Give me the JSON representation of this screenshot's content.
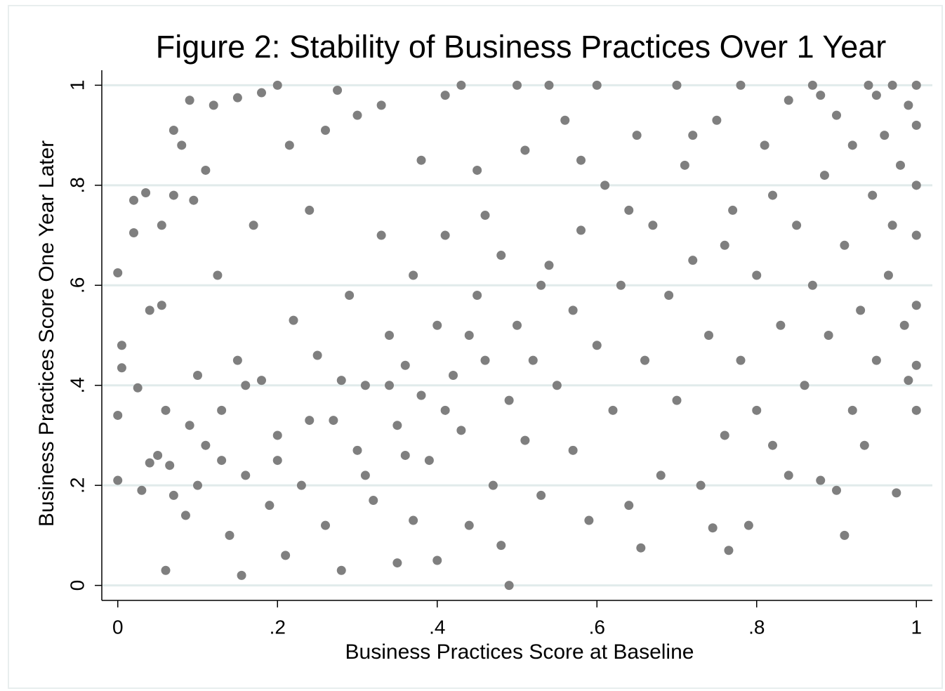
{
  "chart_data": {
    "type": "scatter",
    "title": "Figure 2: Stability of Business Practices Over 1 Year",
    "x_label": "Business Practices Score at Baseline",
    "y_label": "Business Practices Score One Year Later",
    "color": "#7f7f7f",
    "xlim": [
      -0.02,
      1.02
    ],
    "ylim": [
      -0.03,
      1.03
    ],
    "xticks": [
      0,
      {
        "value": 0.2,
        "label": ".2"
      },
      {
        "value": 0.4,
        "label": ".4"
      },
      {
        "value": 0.6,
        "label": ".6"
      },
      {
        "value": 0.8,
        "label": ".8"
      },
      1
    ],
    "yticks": [
      0,
      {
        "value": 0.2,
        "label": ".2"
      },
      {
        "value": 0.4,
        "label": ".4"
      },
      {
        "value": 0.6,
        "label": ".6"
      },
      {
        "value": 0.8,
        "label": ".8"
      },
      1
    ],
    "grid": true,
    "x": [
      0,
      0,
      0,
      0.005,
      0.005,
      0.02,
      0.02,
      0.025,
      0.03,
      0.035,
      0.04,
      0.04,
      0.055,
      0.055,
      0.06,
      0.06,
      0.065,
      0.07,
      0.07,
      0.08,
      0.085,
      0.09,
      0.095,
      0.1,
      0.1,
      0.11,
      0.11,
      0.12,
      0.125,
      0.13,
      0.14,
      0.15,
      0.15,
      0.155,
      0.16,
      0.17,
      0.18,
      0.18,
      0.19,
      0.2,
      0.2,
      0.21,
      0.215,
      0.22,
      0.23,
      0.24,
      0.25,
      0.26,
      0.26,
      0.27,
      0.275,
      0.28,
      0.29,
      0.3,
      0.3,
      0.31,
      0.32,
      0.33,
      0.33,
      0.34,
      0.35,
      0.35,
      0.36,
      0.37,
      0.37,
      0.38,
      0.38,
      0.39,
      0.4,
      0.4,
      0.41,
      0.41,
      0.42,
      0.43,
      0.43,
      0.44,
      0.45,
      0.45,
      0.46,
      0.47,
      0.48,
      0.48,
      0.49,
      0.49,
      0.5,
      0.5,
      0.51,
      0.51,
      0.52,
      0.53,
      0.54,
      0.54,
      0.55,
      0.56,
      0.57,
      0.57,
      0.58,
      0.59,
      0.6,
      0.6,
      0.61,
      0.62,
      0.63,
      0.64,
      0.65,
      0.655,
      0.66,
      0.67,
      0.68,
      0.69,
      0.7,
      0.7,
      0.71,
      0.72,
      0.73,
      0.74,
      0.745,
      0.75,
      0.76,
      0.765,
      0.77,
      0.78,
      0.78,
      0.79,
      0.8,
      0.8,
      0.81,
      0.82,
      0.83,
      0.84,
      0.84,
      0.85,
      0.86,
      0.87,
      0.87,
      0.88,
      0.885,
      0.89,
      0.9,
      0.9,
      0.91,
      0.91,
      0.92,
      0.92,
      0.93,
      0.935,
      0.94,
      0.945,
      0.95,
      0.96,
      0.965,
      0.97,
      0.975,
      0.98,
      0.985,
      0.99,
      0.99,
      1,
      1,
      1,
      1,
      1,
      1,
      1,
      0.97,
      0.95,
      0.88,
      0.82,
      0.76,
      0.72,
      0.64,
      0.58,
      0.53,
      0.46,
      0.44,
      0.41,
      0.36,
      0.34,
      0.31,
      0.28,
      0.24,
      0.2,
      0.16,
      0.13,
      0.09,
      0.07,
      0.05
    ],
    "values": [
      0.625,
      0.34,
      0.21,
      0.48,
      0.435,
      0.77,
      0.705,
      0.395,
      0.19,
      0.785,
      0.55,
      0.245,
      0.56,
      0.72,
      0.03,
      0.35,
      0.24,
      0.91,
      0.78,
      0.88,
      0.14,
      0.97,
      0.77,
      0.42,
      0.2,
      0.83,
      0.28,
      0.96,
      0.62,
      0.35,
      0.1,
      0.975,
      0.45,
      0.02,
      0.22,
      0.72,
      0.985,
      0.41,
      0.16,
      1,
      0.3,
      0.06,
      0.88,
      0.53,
      0.2,
      0.75,
      0.46,
      0.91,
      0.12,
      0.33,
      0.99,
      0.03,
      0.58,
      0.27,
      0.94,
      0.4,
      0.17,
      0.7,
      0.96,
      0.5,
      0.045,
      0.32,
      0.44,
      0.62,
      0.13,
      0.85,
      0.38,
      0.25,
      0.52,
      0.05,
      0.98,
      0.7,
      0.42,
      1,
      0.31,
      0.12,
      0.58,
      0.83,
      0.45,
      0.2,
      0.08,
      0.66,
      0,
      0.37,
      1,
      0.52,
      0.87,
      0.29,
      0.45,
      0.18,
      0.64,
      1,
      0.4,
      0.93,
      0.55,
      0.27,
      0.71,
      0.13,
      0.48,
      1,
      0.8,
      0.35,
      0.6,
      0.16,
      0.9,
      0.075,
      0.45,
      0.72,
      0.22,
      0.58,
      1,
      0.37,
      0.84,
      0.65,
      0.2,
      0.5,
      0.115,
      0.93,
      0.3,
      0.07,
      0.75,
      0.45,
      1,
      0.12,
      0.62,
      0.35,
      0.88,
      0.28,
      0.52,
      0.22,
      0.97,
      0.72,
      0.4,
      0.6,
      1,
      0.21,
      0.82,
      0.5,
      0.19,
      0.94,
      0.1,
      0.68,
      0.35,
      0.88,
      0.55,
      0.28,
      1,
      0.78,
      0.45,
      0.9,
      0.62,
      1,
      0.185,
      0.84,
      0.52,
      0.96,
      0.41,
      1,
      0.35,
      0.92,
      0.8,
      0.7,
      0.56,
      0.44,
      0.72,
      0.98,
      0.98,
      0.78,
      0.68,
      0.9,
      0.75,
      0.85,
      0.6,
      0.74,
      0.5,
      0.35,
      0.26,
      0.4,
      0.22,
      0.41,
      0.33,
      0.25,
      0.4,
      0.25,
      0.32,
      0.18,
      0.26
    ]
  }
}
